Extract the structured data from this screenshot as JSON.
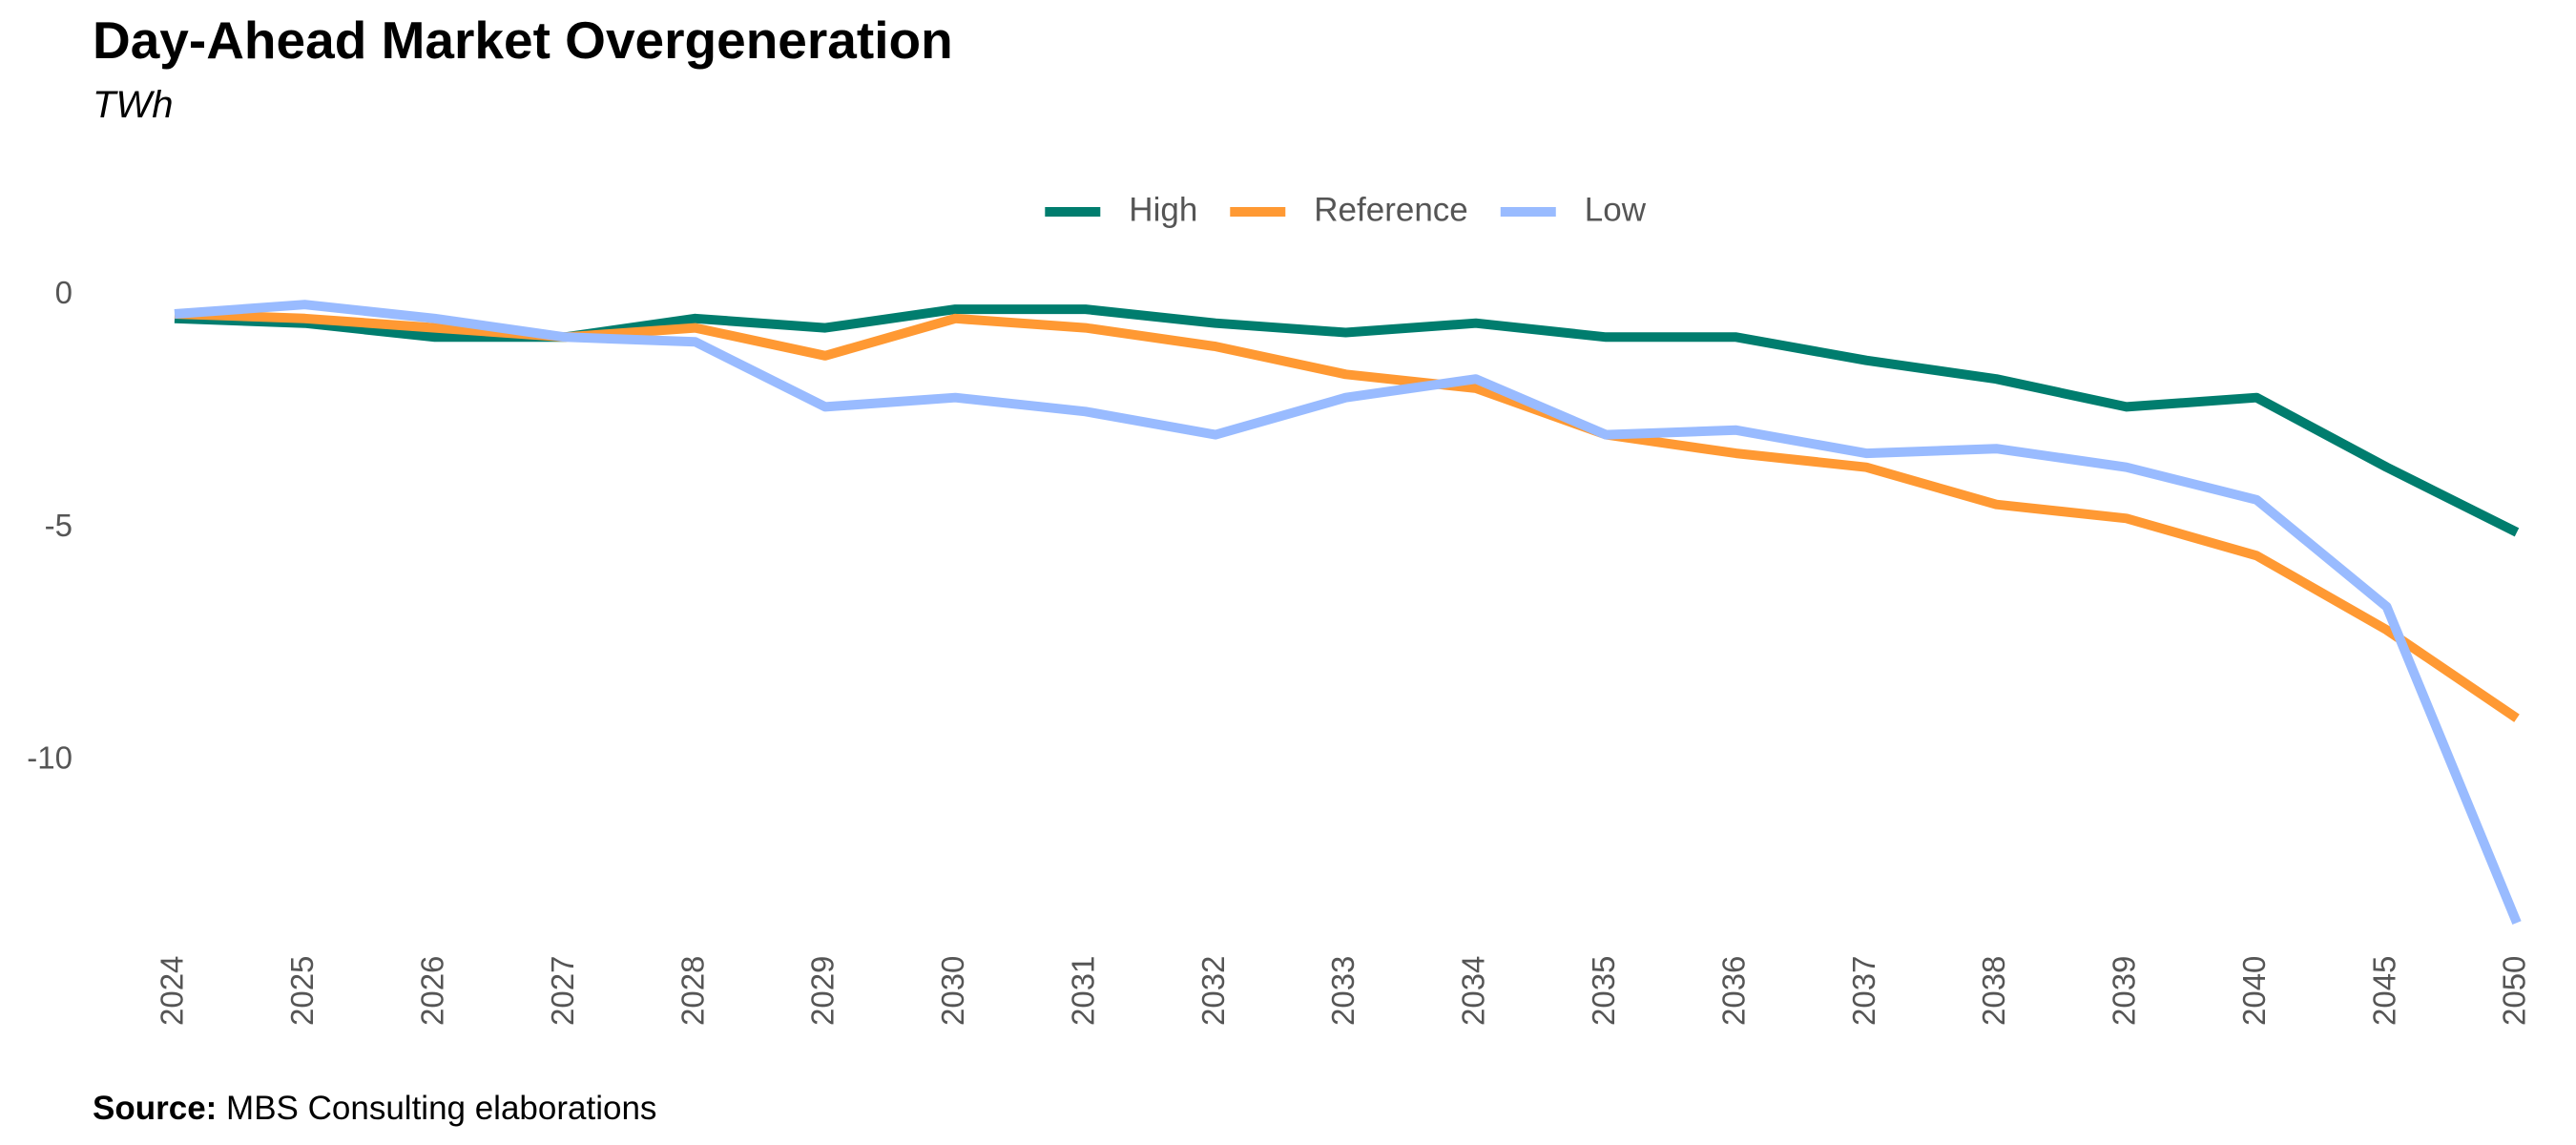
{
  "header": {
    "title": "Day-Ahead Market Overgeneration",
    "subtitle": "TWh"
  },
  "footer": {
    "source_label": "Source:",
    "source_text": "MBS Consulting elaborations"
  },
  "chart_data": {
    "type": "line",
    "title": "Day-Ahead Market Overgeneration",
    "subtitle": "TWh",
    "xlabel": "",
    "ylabel": "",
    "categories": [
      "2024",
      "2025",
      "2026",
      "2027",
      "2028",
      "2029",
      "2030",
      "2031",
      "2032",
      "2033",
      "2034",
      "2035",
      "2036",
      "2037",
      "2038",
      "2039",
      "2040",
      "2045",
      "2050"
    ],
    "y_ticks": [
      0,
      -5,
      -10
    ],
    "y_tick_labels": [
      "0",
      "-5",
      "-10"
    ],
    "ylim": [
      -13.6,
      0.4
    ],
    "grid": false,
    "legend_position": "top-center",
    "series": [
      {
        "name": "High",
        "color": "#007D6E",
        "values": [
          -0.5,
          -0.6,
          -0.9,
          -0.9,
          -0.5,
          -0.7,
          -0.3,
          -0.3,
          -0.6,
          -0.8,
          -0.6,
          -0.9,
          -0.9,
          -1.4,
          -1.8,
          -2.4,
          -2.2,
          -3.7,
          -5.1
        ]
      },
      {
        "name": "Reference",
        "color": "#FF9933",
        "values": [
          -0.4,
          -0.5,
          -0.7,
          -0.9,
          -0.7,
          -1.3,
          -0.5,
          -0.7,
          -1.1,
          -1.7,
          -2.0,
          -3.0,
          -3.4,
          -3.7,
          -4.5,
          -4.8,
          -5.6,
          -7.2,
          -9.1
        ]
      },
      {
        "name": "Low",
        "color": "#99BBFF",
        "values": [
          -0.4,
          -0.2,
          -0.5,
          -0.9,
          -1.0,
          -2.4,
          -2.2,
          -2.5,
          -3.0,
          -2.2,
          -1.8,
          -3.0,
          -2.9,
          -3.4,
          -3.3,
          -3.7,
          -4.4,
          -6.7,
          -13.5
        ]
      }
    ]
  }
}
